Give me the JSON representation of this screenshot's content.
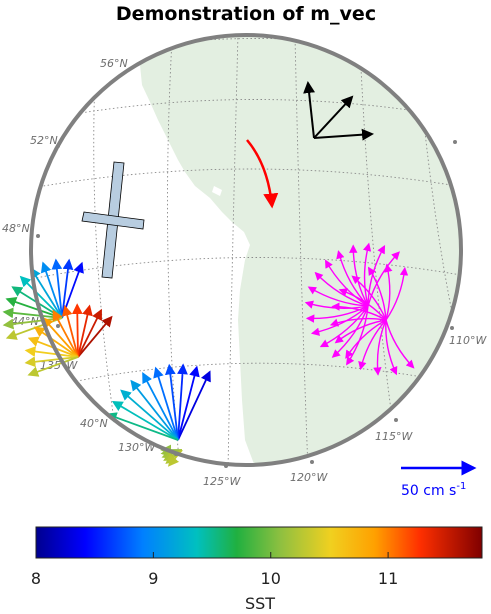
{
  "chart_data": {
    "type": "vector_map",
    "title": "Demonstration of m_vec",
    "gridlines": {
      "latitudes": [
        "56°N",
        "52°N",
        "48°N",
        "44°N",
        "40°N"
      ],
      "longitudes": [
        "135°W",
        "130°W",
        "125°W",
        "120°W",
        "115°W",
        "110°W"
      ]
    },
    "land_color": "#e3efe1",
    "vector_key": {
      "label": "50 cm s",
      "superscript": "-1",
      "color": "#0000ff"
    },
    "colorbar": {
      "label": "SST",
      "range": [
        8,
        11.8
      ],
      "ticks": [
        "8",
        "9",
        "10",
        "11"
      ],
      "colormap": "jet"
    },
    "annotations": {
      "red_arrow_color": "#ff0000",
      "magenta_color": "#ff00ff",
      "cross_color": "#b8cde0"
    }
  }
}
